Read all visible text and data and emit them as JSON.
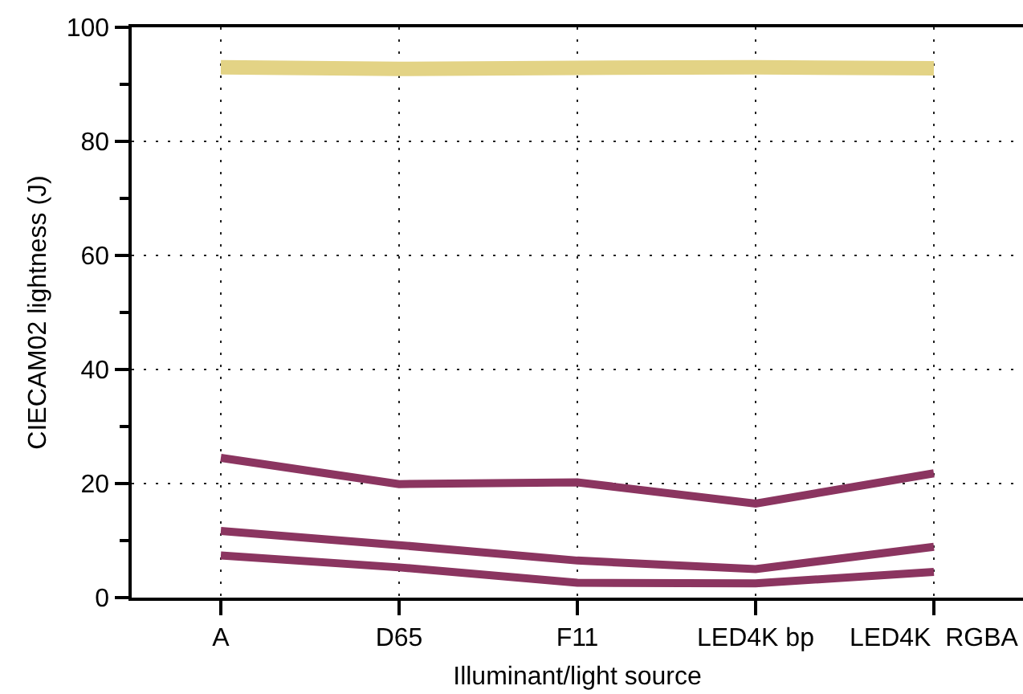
{
  "chart_data": {
    "type": "line",
    "xlabel": "Illuminant/light source",
    "ylabel": "CIECAM02 lightness (J)",
    "categories": [
      "A",
      "D65",
      "F11",
      "LED4K bp",
      "LED4K  RGBA"
    ],
    "series": [
      {
        "color": "#e3d385",
        "values": [
          93,
          92.7,
          92.9,
          93,
          92.8
        ]
      },
      {
        "color": "#8b3560",
        "values": [
          24.5,
          19.9,
          20.2,
          16.5,
          21.8
        ]
      },
      {
        "color": "#8b3560",
        "values": [
          11.7,
          9.2,
          6.5,
          5,
          8.9
        ]
      },
      {
        "color": "#8b3560",
        "values": [
          7.4,
          5.3,
          2.6,
          2.5,
          4.5
        ]
      }
    ],
    "ylim": [
      0,
      100
    ],
    "yticks": [
      0,
      {
        "value": 10,
        "label": null
      },
      20,
      {
        "value": 30,
        "label": null
      },
      40,
      {
        "value": 50,
        "label": null
      },
      60,
      {
        "value": 70,
        "label": null
      },
      80,
      {
        "value": 90,
        "label": null
      },
      100
    ],
    "grid": true,
    "marker": "none",
    "line_style": "solid"
  }
}
